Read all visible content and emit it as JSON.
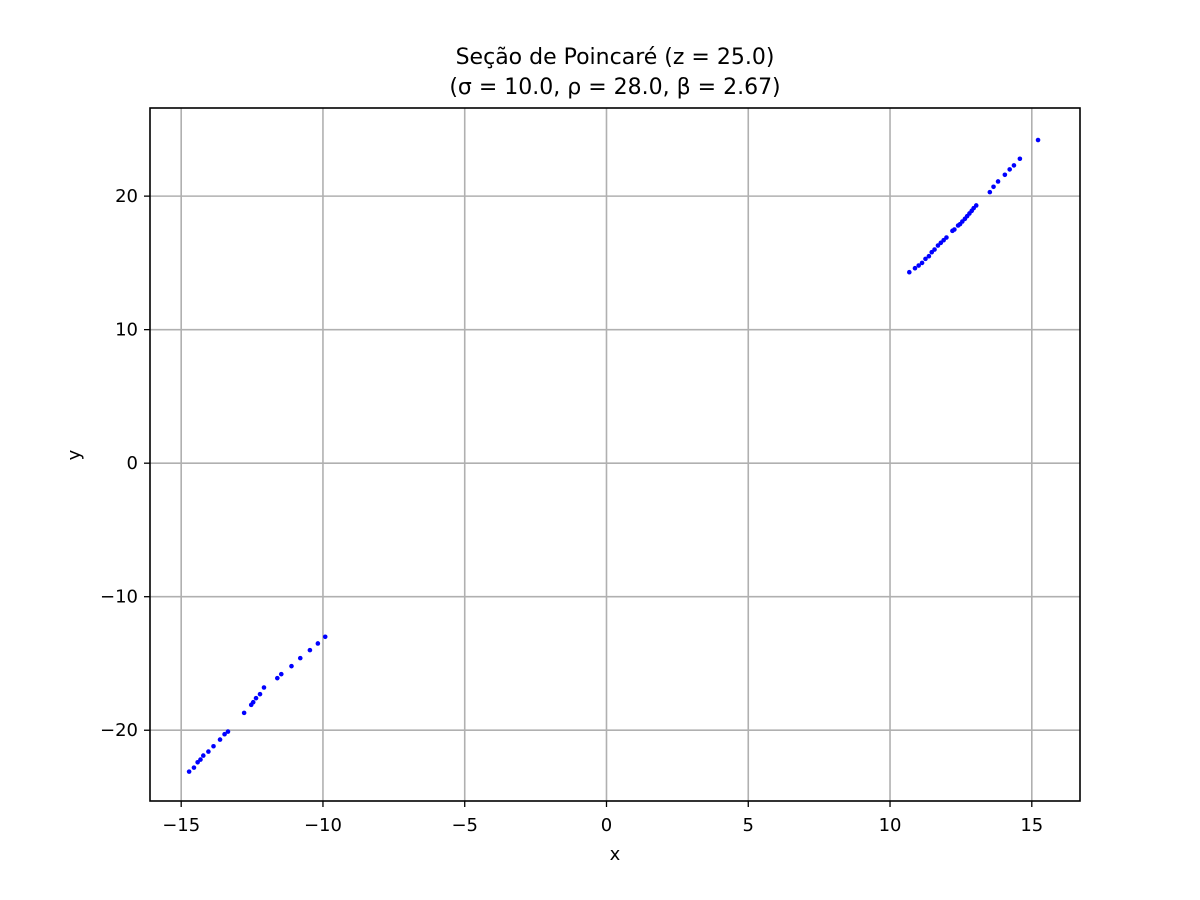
{
  "chart_data": {
    "type": "scatter",
    "title": "Seção de Poincaré (z = 25.0)",
    "subtitle": "(σ = 10.0, ρ = 28.0, β = 2.67)",
    "xlabel": "x",
    "ylabel": "y",
    "xlim": [
      -16.1,
      16.7
    ],
    "ylim": [
      -25.3,
      26.6
    ],
    "xticks": [
      -15,
      -10,
      -5,
      0,
      5,
      10,
      15
    ],
    "xtick_labels": [
      "−15",
      "−10",
      "−5",
      "0",
      "5",
      "10",
      "15"
    ],
    "yticks": [
      -20,
      -10,
      0,
      10,
      20
    ],
    "ytick_labels": [
      "−20",
      "−10",
      "0",
      "10",
      "20"
    ],
    "grid": true,
    "marker_color": "#0000ff",
    "series": [
      {
        "x": [
          15.22,
          14.58,
          14.37,
          14.22,
          14.05,
          13.81,
          13.65,
          13.52,
          13.04,
          12.95,
          12.88,
          12.8,
          12.72,
          12.64,
          12.55,
          12.47,
          12.4,
          12.27,
          12.2,
          11.99,
          11.89,
          11.79,
          11.69,
          11.57,
          11.47,
          11.37,
          11.25,
          11.13,
          11.01,
          10.88,
          10.68,
          -9.92,
          -10.18,
          -10.46,
          -10.8,
          -11.11,
          -11.47,
          -11.61,
          -12.08,
          -12.22,
          -12.36,
          -12.46,
          -12.53,
          -12.78,
          -13.35,
          -13.47,
          -13.63,
          -13.86,
          -14.04,
          -14.22,
          -14.32,
          -14.42,
          -14.55,
          -14.72
        ],
        "y": [
          24.2,
          22.8,
          22.3,
          22.0,
          21.6,
          21.1,
          20.7,
          20.3,
          19.3,
          19.1,
          18.9,
          18.7,
          18.5,
          18.3,
          18.1,
          17.9,
          17.8,
          17.5,
          17.4,
          16.9,
          16.7,
          16.5,
          16.3,
          16.0,
          15.8,
          15.5,
          15.3,
          15.0,
          14.8,
          14.6,
          14.3,
          -13.0,
          -13.5,
          -14.0,
          -14.6,
          -15.2,
          -15.8,
          -16.1,
          -16.8,
          -17.3,
          -17.6,
          -17.9,
          -18.1,
          -18.7,
          -20.1,
          -20.3,
          -20.7,
          -21.2,
          -21.6,
          -21.9,
          -22.2,
          -22.4,
          -22.8,
          -23.1
        ]
      }
    ]
  }
}
